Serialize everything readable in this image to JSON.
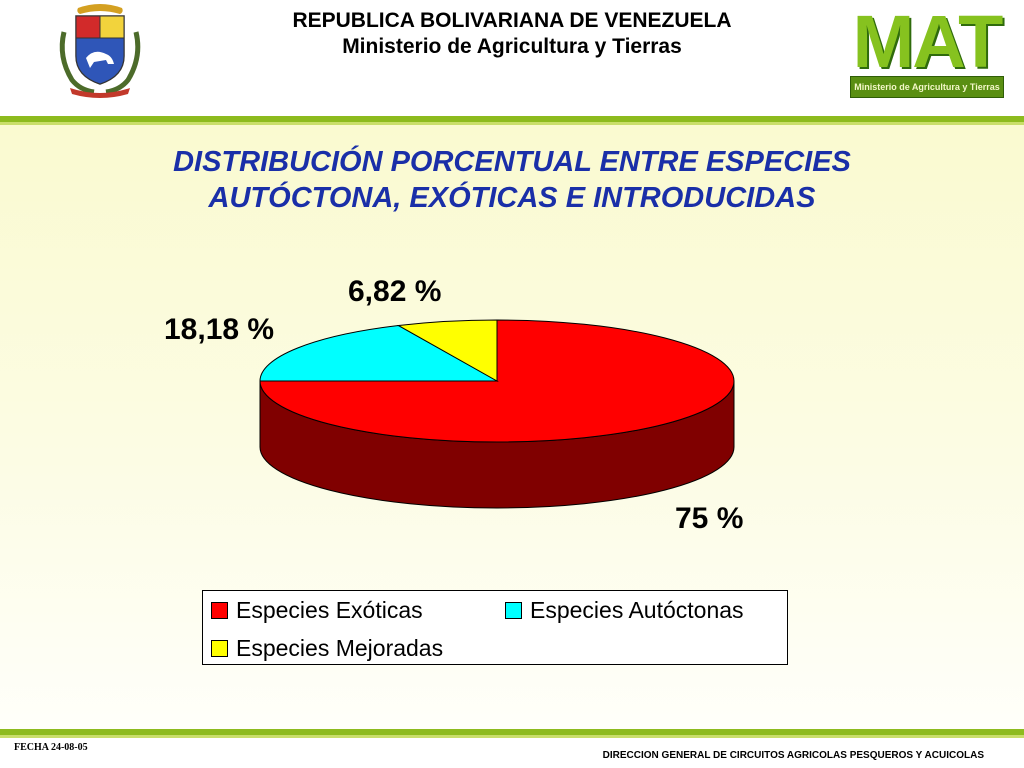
{
  "header": {
    "line1": "REPUBLICA BOLIVARIANA DE VENEZUELA",
    "line2": "Ministerio de Agricultura y Tierras",
    "logo_letters": "MAT",
    "logo_tagline": "Ministerio de Agricultura y Tierras"
  },
  "slide": {
    "title_line1": "DISTRIBUCIÓN PORCENTUAL ENTRE ESPECIES",
    "title_line2": "AUTÓCTONA, EXÓTICAS E INTRODUCIDAS"
  },
  "footer": {
    "date_label": "FECHA   24-08-05",
    "department": "DIRECCION GENERAL DE CIRCUITOS AGRICOLAS  PESQUEROS Y ACUICOLAS"
  },
  "colors": {
    "accent_green": "#8dbb1e",
    "title_blue": "#1a2fa8",
    "slice_exoticas": "#ff0000",
    "slice_exoticas_side": "#800000",
    "slice_autoctonas": "#00ffff",
    "slice_mejoradas": "#ffff00"
  },
  "chart_data": {
    "type": "pie",
    "style": "3d",
    "categories": [
      "Especies Exóticas",
      "Especies Autóctonas",
      "Especies Mejoradas"
    ],
    "values": [
      75,
      18.18,
      6.82
    ],
    "data_labels": [
      "75 %",
      "18,18 %",
      "6,82 %"
    ],
    "colors": [
      "#ff0000",
      "#00ffff",
      "#ffff00"
    ],
    "legend_position": "bottom"
  }
}
